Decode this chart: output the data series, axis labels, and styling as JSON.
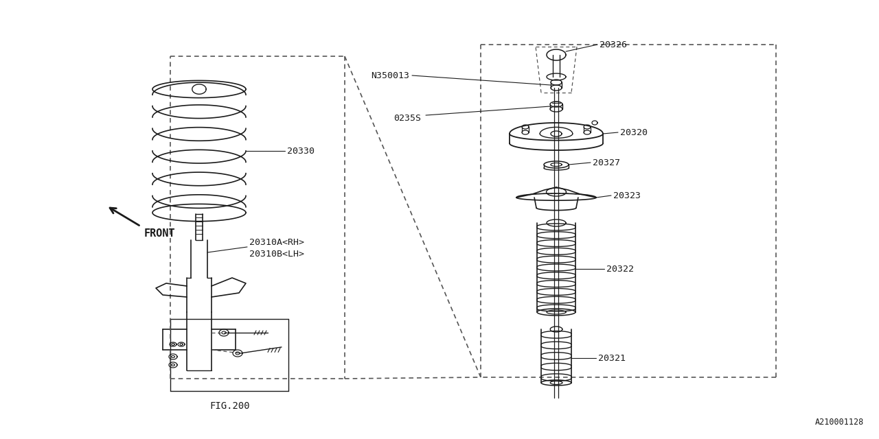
{
  "bg_color": "#ffffff",
  "line_color": "#1a1a1a",
  "dash_color": "#555555",
  "fig_width": 12.8,
  "fig_height": 6.4,
  "watermark": "A210001128",
  "labels": {
    "l330": "20330",
    "l310a": "20310A<RH>",
    "l310b": "20310B<LH>",
    "l_fig": "FIG.200",
    "l_front": "FRONT",
    "l326": "20326",
    "lN": "N350013",
    "l0235S": "0235S",
    "l320": "20320",
    "l327": "20327",
    "l323": "20323",
    "l322": "20322",
    "l321": "20321"
  }
}
